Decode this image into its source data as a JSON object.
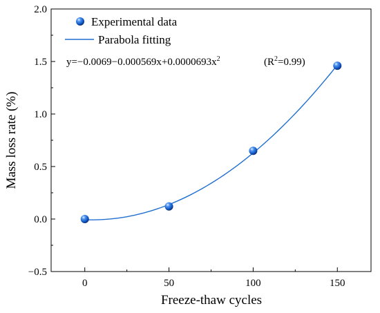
{
  "chart_data": {
    "type": "scatter",
    "xlabel": "Freeze-thaw cycles",
    "ylabel": "Mass loss rate (%)",
    "xlim": [
      -20,
      170
    ],
    "ylim": [
      -0.5,
      2.0
    ],
    "xticks": [
      0,
      50,
      100,
      150
    ],
    "yticks": [
      -0.5,
      0.0,
      0.5,
      1.0,
      1.5,
      2.0
    ],
    "xtick_labels": [
      "0",
      "50",
      "100",
      "150"
    ],
    "ytick_labels": [
      "−0.5",
      "0.0",
      "0.5",
      "1.0",
      "1.5",
      "2.0"
    ],
    "grid": false,
    "legend_position": "top-left",
    "series": [
      {
        "name": "Experimental data",
        "kind": "scatter",
        "marker": "sphere",
        "color": "#1565d8",
        "x": [
          0,
          50,
          100,
          150
        ],
        "y": [
          0.0,
          0.12,
          0.65,
          1.46
        ]
      },
      {
        "name": "Parabola fitting",
        "kind": "line",
        "color": "#1f6fd0",
        "fit": "quadratic",
        "coefficients": [
          -0.0069,
          -0.000569,
          6.93e-05
        ],
        "x_range": [
          0,
          150
        ]
      }
    ],
    "annotation": {
      "equation": "y=−0.0069−0.000569x+0.0000693x",
      "equation_sup": "2",
      "r2_open": "(R",
      "r2_sup": "2",
      "r2_close": "=0.99)"
    }
  }
}
